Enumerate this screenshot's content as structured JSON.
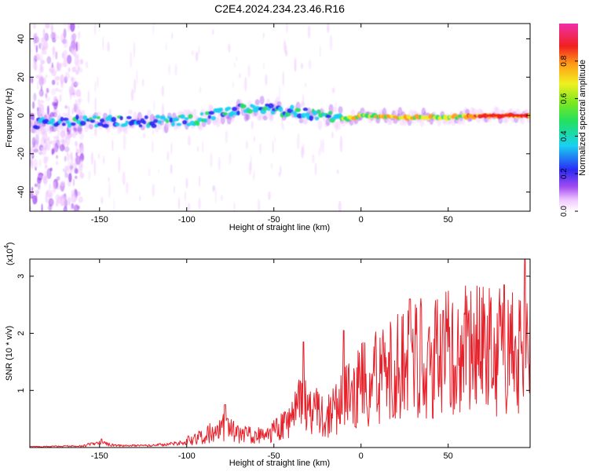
{
  "figure_title": "C2E4.2024.234.23.46.R16",
  "colors": {
    "snr_line": "#e8202a",
    "axis": "#000000",
    "spectrum_low": "#a24cf0",
    "spectrum_mid": "#18d2f0",
    "spectrum_high": "#f02020"
  },
  "chart_data": [
    {
      "type": "heatmap",
      "title": "",
      "xlabel": "Height of straight line (km)",
      "ylabel": "Frequency (Hz)",
      "xlim": [
        -190,
        97
      ],
      "ylim": [
        -50,
        48
      ],
      "xticks": [
        -150,
        -100,
        -50,
        0,
        50
      ],
      "xtick_labels": [
        "-150",
        "-100",
        "-50",
        "0",
        "50"
      ],
      "yticks": [
        -40,
        -20,
        0,
        20,
        40
      ],
      "ytick_labels": [
        "-40",
        "-20",
        "0",
        "20",
        "40"
      ],
      "colorbar": {
        "label": "Normalized spectral amplitude",
        "range": [
          0,
          1
        ],
        "ticks": [
          0,
          0.2,
          0.4,
          0.6,
          0.8
        ],
        "tick_labels": [
          "0.0",
          "0.2",
          "0.4",
          "0.6",
          "0.8"
        ],
        "colormap": "rainbow (white-violet-blue-cyan-green-yellow-red)"
      },
      "ridge": [
        {
          "x": -185,
          "y": -4
        },
        {
          "x": -150,
          "y": -3
        },
        {
          "x": -120,
          "y": -3
        },
        {
          "x": -100,
          "y": -3
        },
        {
          "x": -85,
          "y": 0
        },
        {
          "x": -70,
          "y": 3
        },
        {
          "x": -55,
          "y": 3
        },
        {
          "x": -40,
          "y": 2
        },
        {
          "x": -25,
          "y": 0
        },
        {
          "x": -10,
          "y": -2
        },
        {
          "x": 0,
          "y": 0
        },
        {
          "x": 25,
          "y": -1
        },
        {
          "x": 50,
          "y": -1
        },
        {
          "x": 75,
          "y": 0
        },
        {
          "x": 97,
          "y": 0
        }
      ]
    },
    {
      "type": "line",
      "title": "",
      "xlabel": "Height of straight line (km)",
      "ylabel": "SNR (10 * v/v)",
      "y_scale_label": "(x10",
      "y_scale_exponent": "4",
      "y_scale_suffix": ")",
      "xlim": [
        -190,
        97
      ],
      "ylim": [
        0,
        3.3
      ],
      "xticks": [
        -150,
        -100,
        -50,
        0,
        50
      ],
      "xtick_labels": [
        "-150",
        "-100",
        "-50",
        "0",
        "50"
      ],
      "yticks": [
        1,
        2,
        3
      ],
      "ytick_labels": [
        "1",
        "2",
        "3"
      ],
      "series": [
        {
          "name": "SNR",
          "envelope": [
            {
              "x": -190,
              "y": 0.02
            },
            {
              "x": -160,
              "y": 0.04
            },
            {
              "x": -150,
              "y": 0.12
            },
            {
              "x": -140,
              "y": 0.05
            },
            {
              "x": -120,
              "y": 0.05
            },
            {
              "x": -105,
              "y": 0.1
            },
            {
              "x": -95,
              "y": 0.18
            },
            {
              "x": -85,
              "y": 0.35
            },
            {
              "x": -80,
              "y": 0.45
            },
            {
              "x": -70,
              "y": 0.3
            },
            {
              "x": -60,
              "y": 0.25
            },
            {
              "x": -50,
              "y": 0.35
            },
            {
              "x": -40,
              "y": 0.55
            },
            {
              "x": -32,
              "y": 1.1
            },
            {
              "x": -28,
              "y": 0.85
            },
            {
              "x": -20,
              "y": 0.6
            },
            {
              "x": -10,
              "y": 1.0
            },
            {
              "x": 0,
              "y": 1.3
            },
            {
              "x": 15,
              "y": 1.6
            },
            {
              "x": 30,
              "y": 1.9
            },
            {
              "x": 50,
              "y": 2.0
            },
            {
              "x": 70,
              "y": 2.05
            },
            {
              "x": 90,
              "y": 2.05
            },
            {
              "x": 97,
              "y": 2.0
            }
          ],
          "peaks": [
            {
              "x": -149,
              "y": 0.15
            },
            {
              "x": -78,
              "y": 0.75
            },
            {
              "x": -33,
              "y": 1.85
            },
            {
              "x": -10,
              "y": 2.05
            },
            {
              "x": 28,
              "y": 2.6
            },
            {
              "x": 47,
              "y": 2.4
            },
            {
              "x": 82,
              "y": 2.85
            },
            {
              "x": 94,
              "y": 3.3
            }
          ]
        }
      ]
    }
  ]
}
